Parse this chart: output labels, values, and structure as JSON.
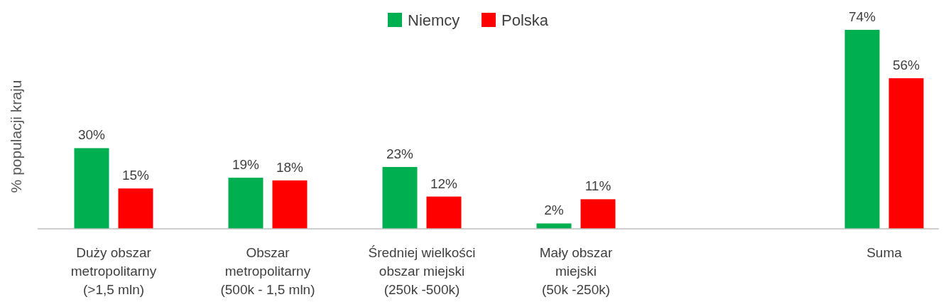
{
  "chart_data": {
    "type": "bar",
    "ylabel": "% populacji kraju",
    "categories": [
      "Duży obszar\nmetropolitarny\n(>1,5 mln)",
      "Obszar\nmetropolitarny\n(500k - 1,5 mln)",
      "Średniej wielkości\nobszar miejski\n(250k -500k)",
      "Mały obszar\nmiejski\n(50k -250k)",
      null,
      "Suma"
    ],
    "series": [
      {
        "name": "Niemcy",
        "color": "#00b050",
        "values": [
          30,
          19,
          23,
          2,
          null,
          74
        ],
        "value_labels": [
          "30%",
          "19%",
          "23%",
          "2%",
          null,
          "74%"
        ]
      },
      {
        "name": "Polska",
        "color": "#ff0000",
        "values": [
          15,
          18,
          12,
          11,
          null,
          56
        ],
        "value_labels": [
          "15%",
          "18%",
          "12%",
          "11%",
          null,
          "56%"
        ]
      }
    ],
    "legend": "top",
    "grid": false
  }
}
